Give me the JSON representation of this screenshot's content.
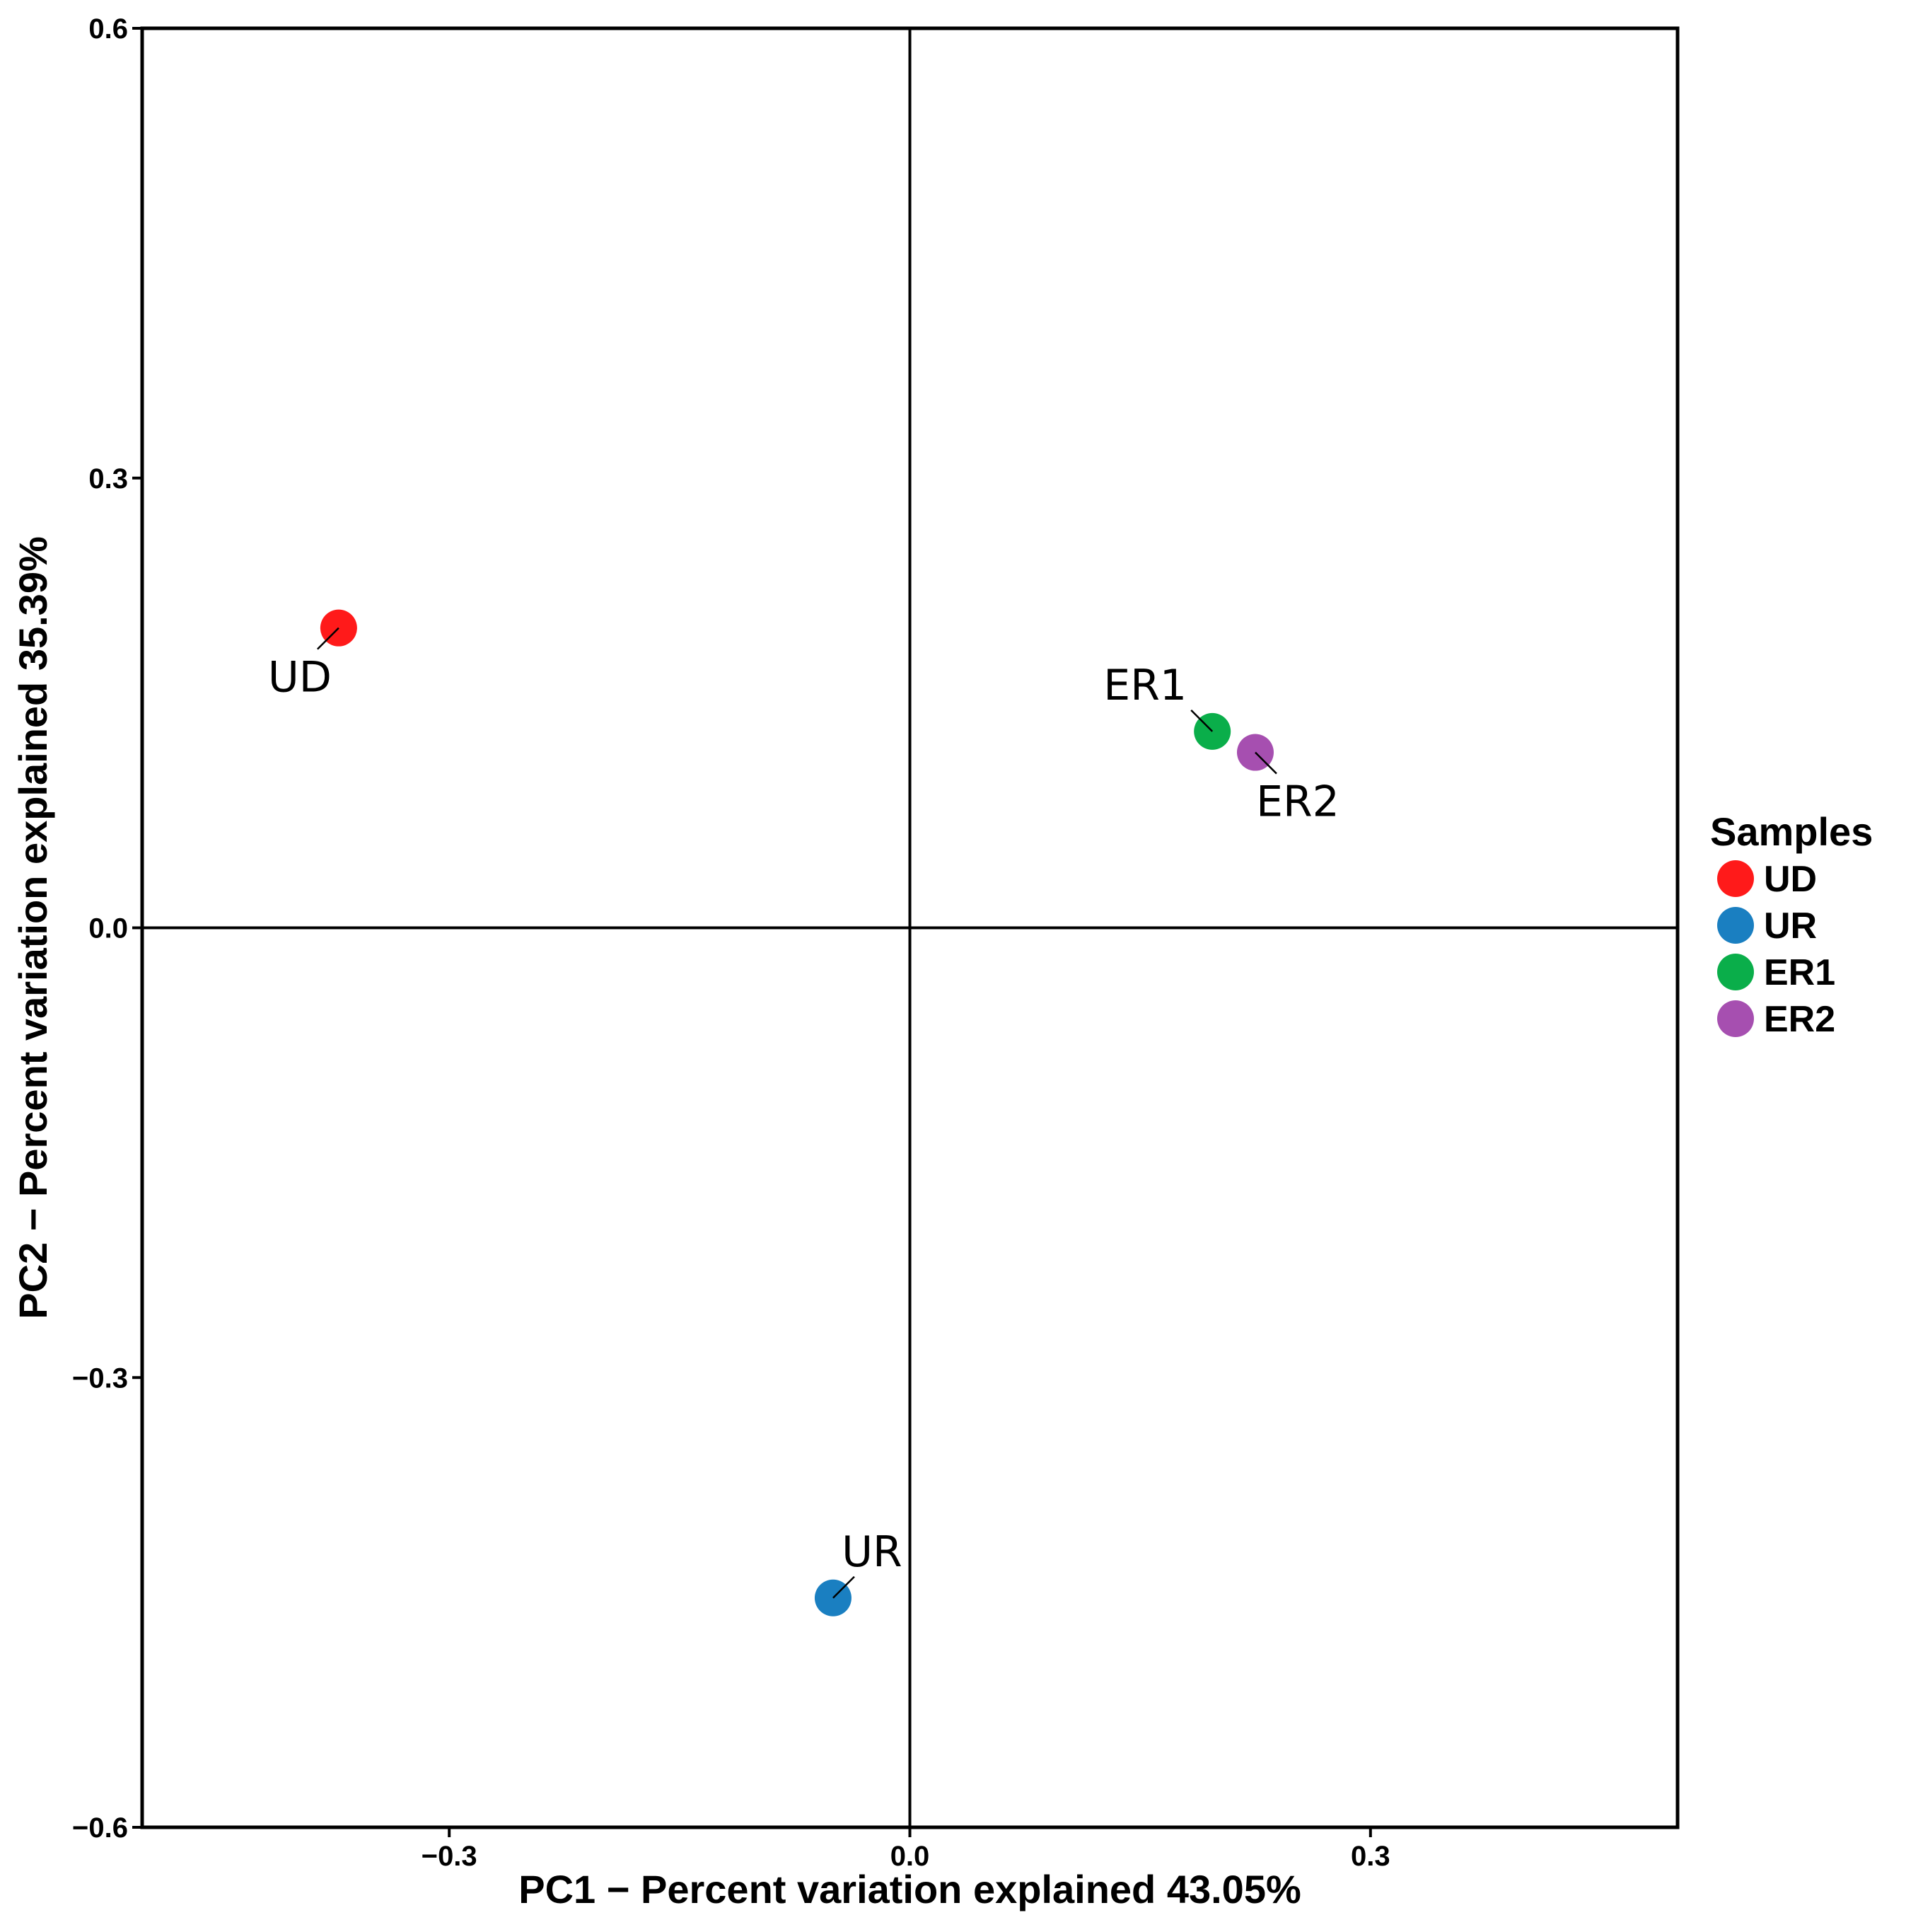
{
  "chart_data": {
    "type": "scatter",
    "title": "",
    "xlabel": "PC1 − Percent variation explained 43.05%",
    "ylabel": "PC2 − Percent variation explained 35.39%",
    "xlim": [
      -0.5,
      0.5
    ],
    "ylim": [
      -0.6,
      0.6
    ],
    "x_ticks": [
      -0.3,
      0.0,
      0.3
    ],
    "x_tick_labels": [
      "−0.3",
      "0.0",
      "0.3"
    ],
    "y_ticks": [
      0.6,
      0.3,
      0.0,
      -0.3,
      -0.6
    ],
    "y_tick_labels": [
      "0.6",
      "0.3",
      "0.0",
      "−0.3",
      "−0.6"
    ],
    "reference_lines": {
      "x": 0.0,
      "y": 0.0
    },
    "grid": false,
    "legend": {
      "title": "Samples",
      "position": "right"
    },
    "series": [
      {
        "name": "UD",
        "x": -0.372,
        "y": 0.2,
        "color": "#ff1a1a",
        "label_side": "below-left"
      },
      {
        "name": "UR",
        "x": -0.05,
        "y": -0.447,
        "color": "#1a7fc1",
        "label_side": "above-right"
      },
      {
        "name": "ER1",
        "x": 0.197,
        "y": 0.131,
        "color": "#0aae4a",
        "label_side": "above-left"
      },
      {
        "name": "ER2",
        "x": 0.225,
        "y": 0.117,
        "color": "#a64fb0",
        "label_side": "below-right"
      }
    ]
  }
}
